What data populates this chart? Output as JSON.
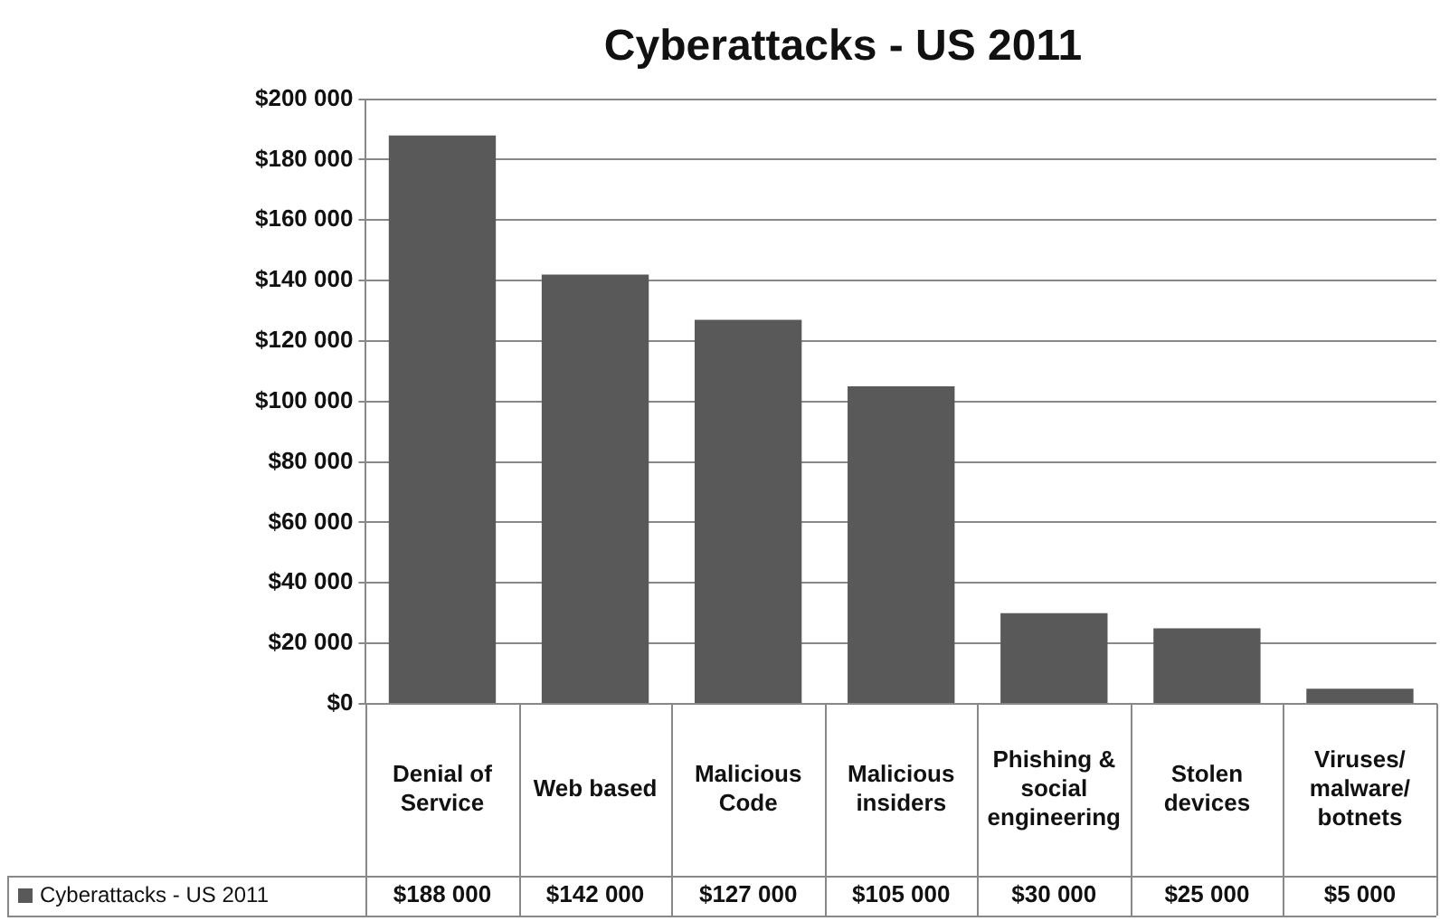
{
  "chart_data": {
    "type": "bar",
    "title": "Cyberattacks - US 2011",
    "categories": [
      "Denial of Service",
      "Web based",
      "Malicious Code",
      "Malicious insiders",
      "Phishing & social engineering",
      "Stolen devices",
      "Viruses/ malware/ botnets"
    ],
    "series": [
      {
        "name": "Cyberattacks - US 2011",
        "color": "#595959",
        "values": [
          188000,
          142000,
          127000,
          105000,
          30000,
          25000,
          5000
        ],
        "value_labels": [
          "$188 000",
          "$142 000",
          "$127 000",
          "$105 000",
          "$30 000",
          "$25 000",
          "$5 000"
        ]
      }
    ],
    "ylim": [
      0,
      200000
    ],
    "yticks": [
      {
        "value": 0,
        "label": "$0"
      },
      {
        "value": 20000,
        "label": "$20 000"
      },
      {
        "value": 40000,
        "label": "$40 000"
      },
      {
        "value": 60000,
        "label": "$60 000"
      },
      {
        "value": 80000,
        "label": "$80 000"
      },
      {
        "value": 100000,
        "label": "$100 000"
      },
      {
        "value": 120000,
        "label": "$120 000"
      },
      {
        "value": 140000,
        "label": "$140 000"
      },
      {
        "value": 160000,
        "label": "$160 000"
      },
      {
        "value": 180000,
        "label": "$180 000"
      },
      {
        "value": 200000,
        "label": "$200 000"
      }
    ],
    "grid": "y",
    "legend": "bottom",
    "data_labels": true
  }
}
